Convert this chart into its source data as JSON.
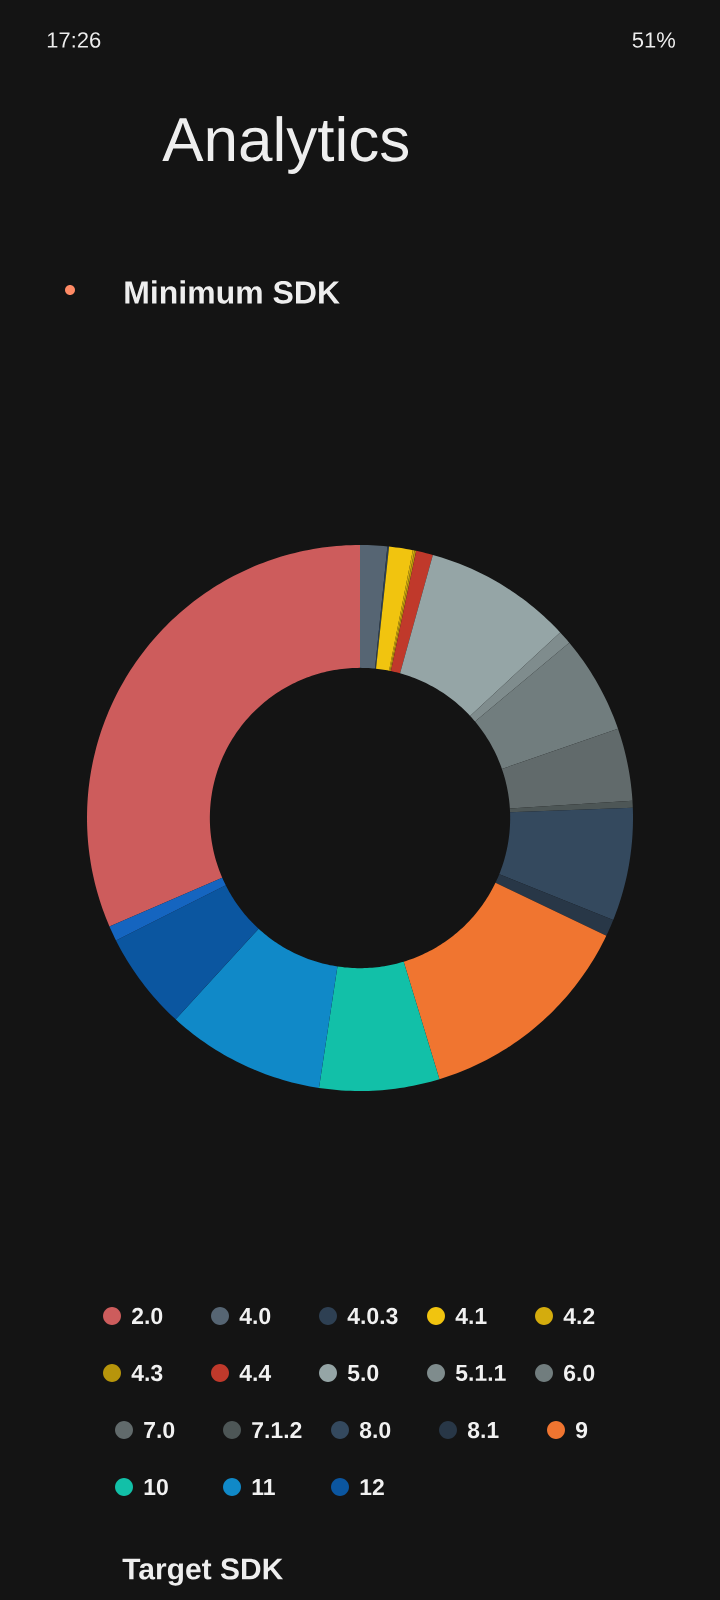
{
  "chart_data": {
    "type": "donut",
    "title": "Minimum SDK",
    "legend": "bottom",
    "categories": [
      "2.0",
      "4.0",
      "4.0.3",
      "4.1",
      "4.2",
      "4.3",
      "4.4",
      "5.0",
      "5.1.1",
      "6.0",
      "7.0",
      "7.1.2",
      "8.0",
      "8.1",
      "9",
      "10",
      "11",
      "12",
      null
    ],
    "values": [
      31.5,
      1.6,
      0.1,
      1.4,
      0.1,
      0.1,
      1.0,
      8.8,
      0.8,
      5.8,
      4.3,
      0.4,
      6.7,
      1.0,
      13.2,
      7.1,
      9.4,
      5.8,
      0.9
    ],
    "colors": [
      "#cd5c5c",
      "#566573",
      "#2e4053",
      "#f1c40f",
      "#d4ac0d",
      "#b7950b",
      "#c0392b",
      "#95a5a6",
      "#7f8c8d",
      "#717d7e",
      "#616a6b",
      "#4d5656",
      "#34495e",
      "#283747",
      "#f07530",
      "#12c0a8",
      "#1089c8",
      "#0b56a0",
      "#1565c0"
    ],
    "annotations": [
      "17:26",
      "51%",
      "Analytics",
      "Target SDK"
    ]
  }
}
